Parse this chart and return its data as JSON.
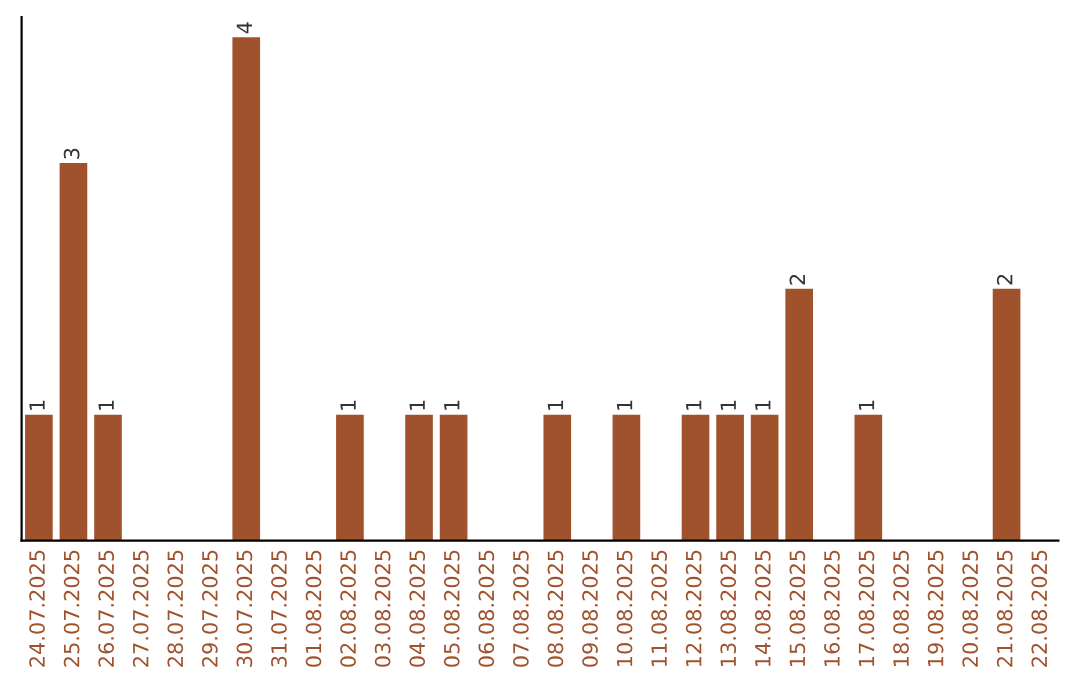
{
  "chart_data": {
    "type": "bar",
    "categories": [
      "24.07.2025",
      "25.07.2025",
      "26.07.2025",
      "27.07.2025",
      "28.07.2025",
      "29.07.2025",
      "30.07.2025",
      "31.07.2025",
      "01.08.2025",
      "02.08.2025",
      "03.08.2025",
      "04.08.2025",
      "05.08.2025",
      "06.08.2025",
      "07.08.2025",
      "08.08.2025",
      "09.08.2025",
      "10.08.2025",
      "11.08.2025",
      "12.08.2025",
      "13.08.2025",
      "14.08.2025",
      "15.08.2025",
      "16.08.2025",
      "17.08.2025",
      "18.08.2025",
      "19.08.2025",
      "20.08.2025",
      "21.08.2025",
      "22.08.2025"
    ],
    "values": [
      1,
      3,
      1,
      0,
      0,
      0,
      4,
      0,
      0,
      1,
      0,
      1,
      1,
      0,
      0,
      1,
      0,
      1,
      0,
      1,
      1,
      1,
      2,
      0,
      1,
      0,
      0,
      0,
      2,
      0
    ],
    "value_labels": [
      "1",
      "3",
      "1",
      null,
      null,
      null,
      "4",
      null,
      null,
      "1",
      null,
      "1",
      "1",
      null,
      null,
      "1",
      null,
      "1",
      null,
      "1",
      "1",
      "1",
      "2",
      null,
      "1",
      null,
      null,
      null,
      "2",
      null
    ],
    "color": "#a0522d",
    "tick_labels": "x",
    "grid": false,
    "legend": false
  }
}
